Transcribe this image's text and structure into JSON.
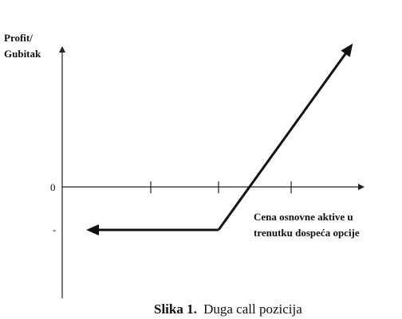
{
  "axis": {
    "y_label": [
      "Profit/",
      "Gubitak"
    ],
    "zero_label": "0",
    "minus_label": "-",
    "x_label": [
      "Cena osnovne aktive u",
      "trenutku dospeća opcije"
    ]
  },
  "caption": {
    "number": "Slika 1.",
    "text": "Duga call pozicija"
  }
}
